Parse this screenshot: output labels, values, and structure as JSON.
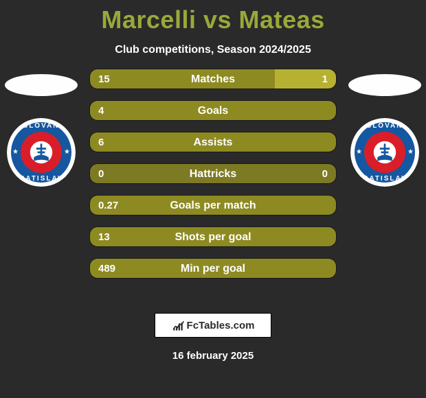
{
  "title_left": "Marcelli",
  "title_vs": "vs",
  "title_right": "Mateas",
  "subtitle": "Club competitions, Season 2024/2025",
  "footer_brand": "FcTables.com",
  "footer_date": "16 february 2025",
  "colors": {
    "background": "#2a2a2a",
    "title": "#9aa83a",
    "text": "#ffffff",
    "bar_left": "#8d8a22",
    "bar_right": "#b7b132",
    "bar_neutral": "#7d7a24",
    "flag_ellipse": "#fefefe"
  },
  "crest": {
    "outer": "#ffffff",
    "ring": "#1557a0",
    "core": "#d91e2a",
    "emblem": "#ffffff",
    "top_text": "SLOVAN",
    "bottom_text": "BRATISLAVA"
  },
  "bars": [
    {
      "label": "Matches",
      "left_val": "15",
      "right_val": "1",
      "left_width": 75,
      "right_width": 25,
      "mode": "split"
    },
    {
      "label": "Goals",
      "left_val": "4",
      "right_val": "0",
      "left_width": 100,
      "right_width": 0,
      "mode": "full_left"
    },
    {
      "label": "Assists",
      "left_val": "6",
      "right_val": "0",
      "left_width": 100,
      "right_width": 0,
      "mode": "full_left"
    },
    {
      "label": "Hattricks",
      "left_val": "0",
      "right_val": "0",
      "left_width": 50,
      "right_width": 50,
      "mode": "neutral"
    },
    {
      "label": "Goals per match",
      "left_val": "0.27",
      "right_val": "",
      "left_width": 100,
      "right_width": 0,
      "mode": "full_left"
    },
    {
      "label": "Shots per goal",
      "left_val": "13",
      "right_val": "",
      "left_width": 100,
      "right_width": 0,
      "mode": "full_left"
    },
    {
      "label": "Min per goal",
      "left_val": "489",
      "right_val": "",
      "left_width": 100,
      "right_width": 0,
      "mode": "full_left"
    }
  ]
}
